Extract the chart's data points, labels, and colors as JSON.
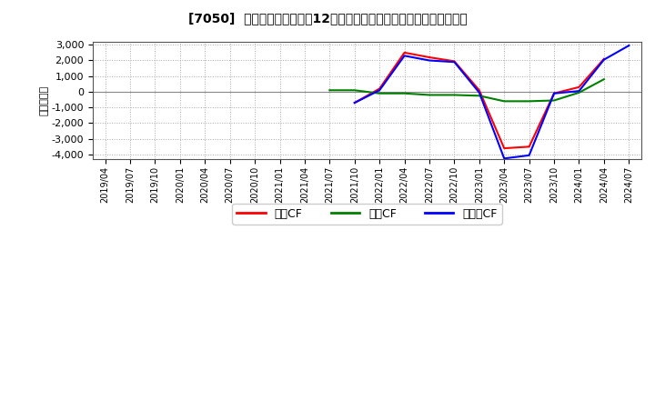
{
  "title": "[7050]  キャッシュフローの12か月移動合計の対前年同期増減額の推移",
  "ylabel": "（百万円）",
  "ylim": [
    -4300,
    3200
  ],
  "yticks": [
    -4000,
    -3000,
    -2000,
    -1000,
    0,
    1000,
    2000,
    3000
  ],
  "background_color": "#ffffff",
  "plot_bg_color": "#ffffff",
  "grid_color": "#aaaaaa",
  "legend_labels": [
    "営業CF",
    "投賄CF",
    "フリーCF"
  ],
  "legend_colors": [
    "#ff0000",
    "#008000",
    "#0000ff"
  ],
  "x_labels": [
    "2019/04",
    "2019/07",
    "2019/10",
    "2020/01",
    "2020/04",
    "2020/07",
    "2020/10",
    "2021/01",
    "2021/04",
    "2021/07",
    "2021/10",
    "2022/01",
    "2022/04",
    "2022/07",
    "2022/10",
    "2023/01",
    "2023/04",
    "2023/07",
    "2023/10",
    "2024/01",
    "2024/04",
    "2024/07"
  ],
  "op_x": [
    10,
    11,
    12,
    13,
    14,
    15,
    16,
    17,
    18,
    19,
    20
  ],
  "op_y": [
    -700,
    200,
    2500,
    2200,
    1950,
    100,
    -3600,
    -3500,
    -100,
    300,
    2100
  ],
  "inv_x": [
    9,
    10,
    11,
    12,
    13,
    14,
    15,
    16,
    17,
    18,
    19,
    20
  ],
  "inv_y": [
    100,
    100,
    -100,
    -100,
    -200,
    -200,
    -250,
    -600,
    -600,
    -550,
    -50,
    800
  ],
  "free_x": [
    10,
    11,
    12,
    13,
    14,
    15,
    16,
    17,
    18,
    19,
    20,
    21
  ],
  "free_y": [
    -700,
    100,
    2300,
    2000,
    1900,
    -50,
    -4250,
    -4050,
    -100,
    50,
    2050,
    2950
  ]
}
